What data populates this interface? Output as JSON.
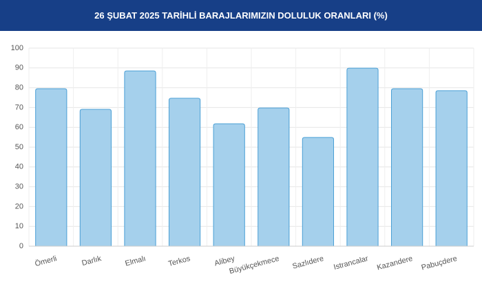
{
  "chart_data": {
    "type": "bar",
    "title": "26 ŞUBAT 2025 TARİHLİ BARAJLARIMIZIN DOLULUK ORANLARI (%)",
    "categories": [
      "Ömerli",
      "Darlık",
      "Elmalı",
      "Terkos",
      "Alibey",
      "Büyükçekmece",
      "Sazlıdere",
      "Istrancalar",
      "Kazandere",
      "Pabuçdere"
    ],
    "values": [
      79.5,
      69.1,
      88.5,
      74.7,
      61.8,
      69.8,
      54.9,
      89.9,
      79.5,
      78.5
    ],
    "color": "#a5d0ec",
    "edge_color": "#4a9fd5",
    "ylim": [
      0,
      100
    ],
    "yticks": [
      0,
      10,
      20,
      30,
      40,
      50,
      60,
      70,
      80,
      90,
      100
    ],
    "grid": true
  }
}
